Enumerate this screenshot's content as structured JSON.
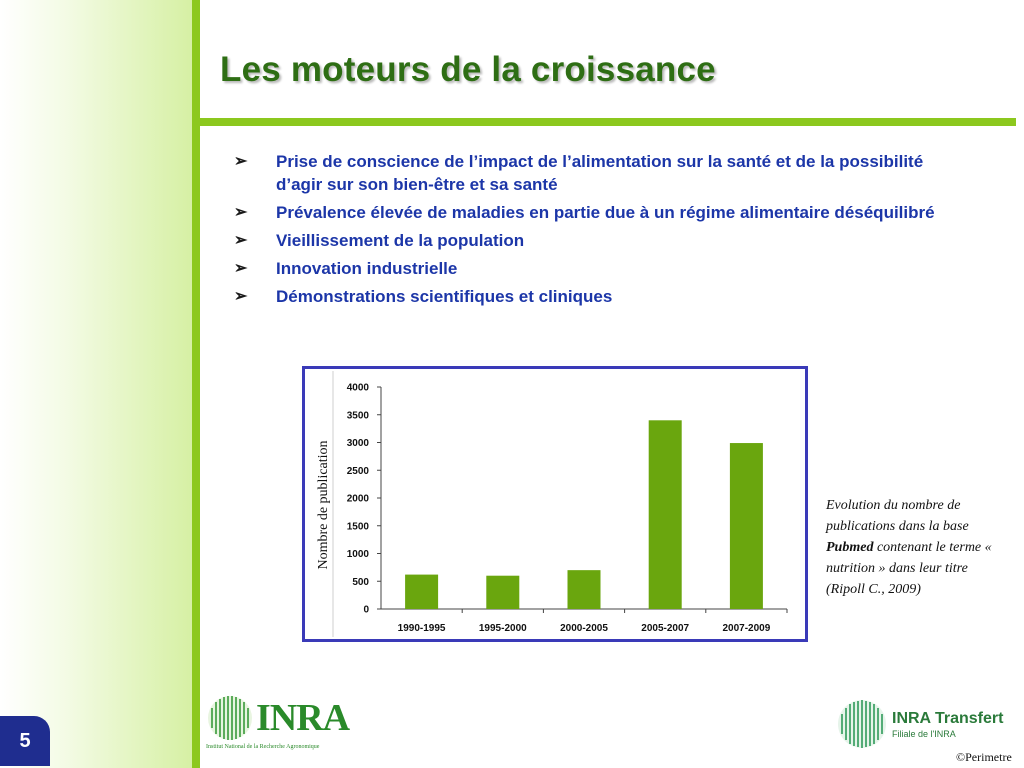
{
  "slide": {
    "title": "Les moteurs de la croissance",
    "page_number": "5",
    "copyright": "©Perimetre"
  },
  "bullets": [
    {
      "marker": "➢",
      "text": "Prise de conscience de l’impact de l’alimentation sur la santé et de la possibilité d’agir sur son bien-être et sa santé"
    },
    {
      "marker": "➢",
      "text": "Prévalence élevée de maladies en partie due à un régime alimentaire déséquilibré"
    },
    {
      "marker": "➢",
      "text": "Vieillissement de la population"
    },
    {
      "marker": "➢",
      "text": "Innovation industrielle"
    },
    {
      "marker": "➢",
      "text": "Démonstrations scientifiques et cliniques"
    }
  ],
  "caption": {
    "part1": "Evolution du nombre de publications dans la base ",
    "bold": "Pubmed",
    "part2": " contenant le terme « nutrition » dans leur titre (Ripoll C., 2009)"
  },
  "logos": {
    "inra_word": "INRA",
    "inra_sub": "Institut National de la Recherche Agronomique",
    "transfert_word": "INRA Transfert",
    "transfert_sub": "Filiale de l'INRA"
  },
  "colors": {
    "title": "#2e6e14",
    "accent_green": "#8cc81e",
    "bullet_text": "#1c36a8",
    "bar": "#6aa60e",
    "chart_border": "#3a3ab8"
  },
  "chart_data": {
    "type": "bar",
    "title": "",
    "xlabel": "",
    "ylabel": "Nombre de publication",
    "categories": [
      "1990-1995",
      "1995-2000",
      "2000-2005",
      "2005-2007",
      "2007-2009"
    ],
    "values": [
      620,
      600,
      700,
      3400,
      2990
    ],
    "ylim": [
      0,
      4000
    ],
    "yticks": [
      0,
      500,
      1000,
      1500,
      2000,
      2500,
      3000,
      3500,
      4000
    ],
    "grid": false,
    "legend": "none"
  }
}
